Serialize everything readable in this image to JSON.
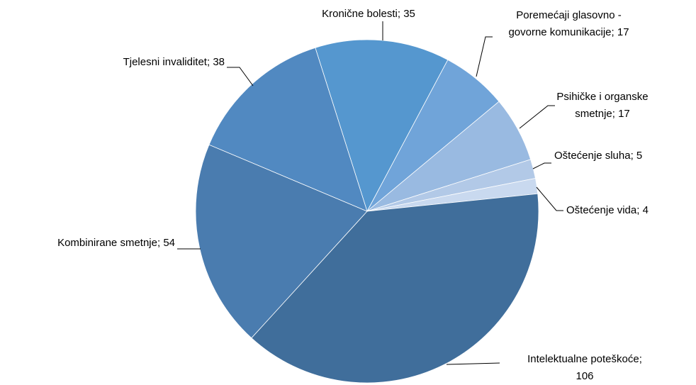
{
  "chart_data": {
    "type": "pie",
    "categories": [
      "Kronične bolesti",
      "Poremećaji glasovno - govorne komunikacije",
      "Psihičke i organske smetnje",
      "Oštećenje sluha",
      "Oštećenje vida",
      "Intelektualne poteškoće",
      "Kombinirane smetnje",
      "Tjelesni invaliditet"
    ],
    "values": [
      35,
      17,
      17,
      5,
      4,
      106,
      54,
      38
    ],
    "colors": [
      "#5597cf",
      "#70a4d9",
      "#99bae1",
      "#b2c9e7",
      "#c9d9ef",
      "#406e9b",
      "#4a7caf",
      "#5189c1"
    ],
    "label_separator": "; "
  }
}
